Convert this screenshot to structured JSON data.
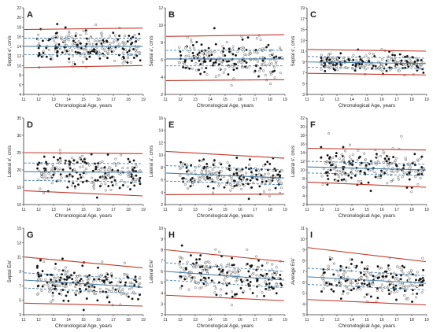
{
  "figure": {
    "x_tick_labels": [
      "11",
      "12",
      "13",
      "14",
      "15",
      "16",
      "17",
      "18",
      "19"
    ],
    "xlabel": "Chronological Age, years"
  },
  "colors": {
    "percentile_outer": "#c0392b",
    "median": "#4a7fa8",
    "percentile_inner": "#4a7fa8",
    "point_fill": "#111111",
    "point_open": "#ffffff",
    "axis": "#333333"
  },
  "chart_data": [
    {
      "panel": "A",
      "type": "scatter",
      "ylabel": "Septal e', cm/s",
      "xlim": [
        11,
        19
      ],
      "ylim": [
        4,
        22
      ],
      "yticks": [
        "4",
        "6",
        "8",
        "10",
        "12",
        "14",
        "16",
        "18",
        "20",
        "22"
      ],
      "median": [
        14.0,
        14.0
      ],
      "inner": [
        [
          12.3,
          12.3
        ],
        [
          15.7,
          15.7
        ]
      ],
      "outer": [
        [
          9.6,
          10.0
        ],
        [
          17.5,
          17.8
        ]
      ],
      "cloud": {
        "x_range": [
          11.9,
          18.8
        ],
        "center": [
          14.0,
          14.0
        ],
        "spread": 1.6,
        "n": 260
      }
    },
    {
      "panel": "B",
      "type": "scatter",
      "ylabel": "Septal a', cm/s",
      "xlim": [
        11,
        19
      ],
      "ylim": [
        2,
        12
      ],
      "yticks": [
        "2",
        "4",
        "6",
        "8",
        "10",
        "12"
      ],
      "median": [
        6.1,
        6.1
      ],
      "inner": [
        [
          5.3,
          5.3
        ],
        [
          7.1,
          7.1
        ]
      ],
      "outer": [
        [
          3.6,
          3.7
        ],
        [
          8.7,
          8.9
        ]
      ],
      "cloud": {
        "x_range": [
          11.9,
          18.8
        ],
        "center": [
          6.2,
          6.1
        ],
        "spread": 1.0,
        "n": 240
      }
    },
    {
      "panel": "C",
      "type": "scatter",
      "ylabel": "Septal s', cm/s",
      "xlim": [
        11,
        19
      ],
      "ylim": [
        3,
        19
      ],
      "yticks": [
        "3",
        "5",
        "7",
        "9",
        "11",
        "13",
        "15",
        "17",
        "19"
      ],
      "median": [
        9.0,
        8.7
      ],
      "inner": [
        [
          8.0,
          7.8
        ],
        [
          10.0,
          9.7
        ]
      ],
      "outer": [
        [
          6.9,
          6.6
        ],
        [
          11.3,
          11.0
        ]
      ],
      "cloud": {
        "x_range": [
          11.9,
          18.8
        ],
        "center": [
          9.0,
          8.7
        ],
        "spread": 0.8,
        "n": 240
      }
    },
    {
      "panel": "D",
      "type": "scatter",
      "ylabel": "Lateral e', cm/s",
      "xlim": [
        11,
        19
      ],
      "ylim": [
        10,
        35
      ],
      "yticks": [
        "10",
        "15",
        "20",
        "25",
        "30",
        "35"
      ],
      "median": [
        19.5,
        19.3
      ],
      "inner": [
        [
          17.0,
          16.5
        ],
        [
          22.0,
          21.8
        ]
      ],
      "outer": [
        [
          14.0,
          12.5
        ],
        [
          25.0,
          24.7
        ]
      ],
      "cloud": {
        "x_range": [
          11.9,
          18.8
        ],
        "center": [
          19.8,
          19.0
        ],
        "spread": 2.5,
        "n": 240
      }
    },
    {
      "panel": "E",
      "type": "scatter",
      "ylabel": "Lateral a', cm/s",
      "xlim": [
        11,
        19
      ],
      "ylim": [
        2,
        16
      ],
      "yticks": [
        "2",
        "4",
        "6",
        "8",
        "10",
        "12",
        "14",
        "16"
      ],
      "median": [
        7.1,
        6.3
      ],
      "inner": [
        [
          5.8,
          5.2
        ],
        [
          8.3,
          7.6
        ]
      ],
      "outer": [
        [
          3.6,
          3.7
        ],
        [
          10.6,
          9.5
        ]
      ],
      "cloud": {
        "x_range": [
          11.9,
          18.8
        ],
        "center": [
          7.1,
          6.3
        ],
        "spread": 1.3,
        "n": 240
      }
    },
    {
      "panel": "F",
      "type": "scatter",
      "ylabel": "Lateral s', cm/s",
      "xlim": [
        11,
        19
      ],
      "ylim": [
        2,
        22
      ],
      "yticks": [
        "2",
        "4",
        "6",
        "8",
        "10",
        "12",
        "14",
        "16",
        "18",
        "20",
        "22"
      ],
      "median": [
        10.7,
        10.0
      ],
      "inner": [
        [
          9.3,
          8.7
        ],
        [
          12.0,
          11.3
        ]
      ],
      "outer": [
        [
          7.2,
          6.0
        ],
        [
          15.0,
          14.6
        ]
      ],
      "cloud": {
        "x_range": [
          11.9,
          18.8
        ],
        "center": [
          10.7,
          10.0
        ],
        "spread": 2.0,
        "n": 240
      }
    },
    {
      "panel": "G",
      "type": "scatter",
      "ylabel": "Septal E/e'",
      "xlim": [
        11,
        19
      ],
      "ylim": [
        3,
        15
      ],
      "yticks": [
        "3",
        "5",
        "7",
        "9",
        "11",
        "13",
        "15"
      ],
      "median": [
        7.8,
        6.8
      ],
      "inner": [
        [
          6.7,
          5.9
        ],
        [
          8.8,
          7.9
        ]
      ],
      "outer": [
        [
          4.6,
          4.2
        ],
        [
          11.0,
          9.5
        ]
      ],
      "cloud": {
        "x_range": [
          11.9,
          18.8
        ],
        "center": [
          7.8,
          6.8
        ],
        "spread": 1.2,
        "n": 240
      }
    },
    {
      "panel": "H",
      "type": "scatter",
      "ylabel": "Lateral E/e'",
      "xlim": [
        11,
        19
      ],
      "ylim": [
        2,
        10
      ],
      "yticks": [
        "2",
        "3",
        "4",
        "5",
        "6",
        "7",
        "8",
        "9",
        "10"
      ],
      "median": [
        6.0,
        5.2
      ],
      "inner": [
        [
          5.2,
          4.5
        ],
        [
          6.8,
          6.0
        ]
      ],
      "outer": [
        [
          3.8,
          3.3
        ],
        [
          8.0,
          6.9
        ]
      ],
      "cloud": {
        "x_range": [
          11.9,
          18.8
        ],
        "center": [
          6.0,
          5.2
        ],
        "spread": 0.9,
        "n": 240
      }
    },
    {
      "panel": "I",
      "type": "scatter",
      "ylabel": "Average E/e'",
      "xlim": [
        11,
        19
      ],
      "ylim": [
        3,
        11
      ],
      "yticks": [
        "3",
        "4",
        "5",
        "6",
        "7",
        "8",
        "9",
        "10",
        "11"
      ],
      "median": [
        6.5,
        5.9
      ],
      "inner": [
        [
          5.8,
          5.3
        ],
        [
          7.3,
          6.6
        ]
      ],
      "outer": [
        [
          4.4,
          3.9
        ],
        [
          9.2,
          7.9
        ]
      ],
      "cloud": {
        "x_range": [
          11.9,
          18.8
        ],
        "center": [
          6.5,
          5.9
        ],
        "spread": 0.9,
        "n": 240
      }
    }
  ]
}
